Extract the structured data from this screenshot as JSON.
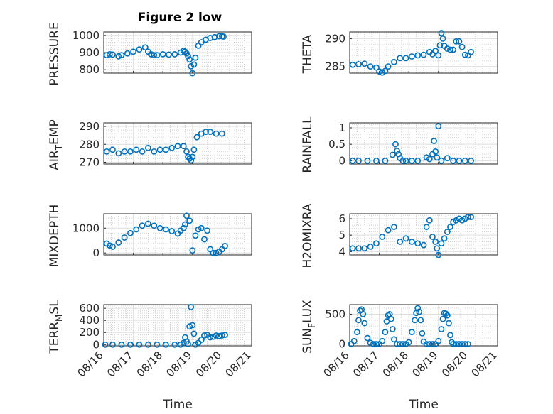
{
  "figure": {
    "title": "Figure 2 low"
  },
  "chart_data": [
    {
      "type": "scatter",
      "ylabel": "PRESSURE",
      "xlabel": "",
      "xlim": [
        "08/16",
        "08/21"
      ],
      "ylim": [
        780,
        1020
      ],
      "yticks": [
        {
          "v": 800,
          "label": "800"
        },
        {
          "v": 900,
          "label": "900"
        },
        {
          "v": 1000,
          "label": "1000"
        }
      ],
      "x": [
        16.1,
        16.2,
        16.3,
        16.5,
        16.6,
        16.8,
        17.0,
        17.2,
        17.4,
        17.5,
        17.6,
        17.7,
        17.8,
        18.0,
        18.2,
        18.4,
        18.6,
        18.7,
        18.75,
        18.8,
        18.85,
        18.9,
        18.95,
        19.0,
        19.05,
        19.1,
        19.2,
        19.3,
        19.45,
        19.6,
        19.75,
        19.9,
        20.0,
        20.05
      ],
      "y": [
        885,
        890,
        888,
        878,
        885,
        895,
        905,
        918,
        930,
        905,
        890,
        885,
        885,
        890,
        888,
        890,
        900,
        910,
        905,
        895,
        880,
        860,
        820,
        780,
        830,
        870,
        940,
        960,
        975,
        985,
        990,
        995,
        995,
        993
      ]
    },
    {
      "type": "scatter",
      "ylabel": "THETA",
      "xlabel": "",
      "xlim": [
        "08/16",
        "08/21"
      ],
      "ylim": [
        283.8,
        291.2
      ],
      "yticks": [
        {
          "v": 285,
          "label": "285"
        },
        {
          "v": 290,
          "label": "290"
        }
      ],
      "x": [
        16.1,
        16.3,
        16.5,
        16.7,
        16.9,
        17.0,
        17.1,
        17.2,
        17.3,
        17.5,
        17.7,
        17.9,
        18.1,
        18.3,
        18.5,
        18.7,
        18.8,
        18.9,
        19.0,
        19.05,
        19.1,
        19.15,
        19.2,
        19.3,
        19.4,
        19.5,
        19.6,
        19.7,
        19.8,
        19.9,
        20.0,
        20.1
      ],
      "y": [
        285.3,
        285.4,
        285.5,
        285.0,
        284.8,
        284.1,
        283.9,
        284.2,
        285.0,
        285.8,
        286.5,
        286.5,
        286.8,
        287.0,
        287.1,
        287.6,
        287.2,
        287.8,
        287.0,
        288.8,
        291.0,
        290.0,
        288.7,
        288.2,
        288.0,
        288.0,
        289.5,
        289.5,
        288.5,
        287.1,
        287.0,
        287.6
      ]
    },
    {
      "type": "scatter",
      "ylabel": "AIR_TEMP",
      "xlabel": "",
      "xlim": [
        "08/16",
        "08/21"
      ],
      "ylim": [
        269,
        292
      ],
      "yticks": [
        {
          "v": 270,
          "label": "270"
        },
        {
          "v": 280,
          "label": "280"
        },
        {
          "v": 290,
          "label": "290"
        }
      ],
      "x": [
        16.1,
        16.3,
        16.5,
        16.7,
        16.9,
        17.1,
        17.3,
        17.5,
        17.7,
        17.9,
        18.1,
        18.3,
        18.5,
        18.7,
        18.8,
        18.85,
        18.9,
        18.95,
        19.0,
        19.05,
        19.15,
        19.3,
        19.45,
        19.6,
        19.8,
        20.0
      ],
      "y": [
        276,
        277,
        275,
        276,
        276,
        277,
        276,
        278,
        276,
        277,
        277,
        278,
        279,
        279,
        276,
        273,
        272,
        271,
        273,
        277,
        284,
        286,
        287,
        287,
        286,
        286
      ]
    },
    {
      "type": "scatter",
      "ylabel": "RAINFALL",
      "xlabel": "",
      "xlim": [
        "08/16",
        "08/21"
      ],
      "ylim": [
        -0.1,
        1.15
      ],
      "yticks": [
        {
          "v": 0,
          "label": "0"
        },
        {
          "v": 0.5,
          "label": "0.5"
        },
        {
          "v": 1,
          "label": "1"
        }
      ],
      "x": [
        16.1,
        16.3,
        16.6,
        16.9,
        17.2,
        17.45,
        17.55,
        17.6,
        17.65,
        17.7,
        17.8,
        17.9,
        18.1,
        18.3,
        18.6,
        18.7,
        18.8,
        18.85,
        18.9,
        18.95,
        19.0,
        19.1,
        19.3,
        19.5,
        19.7,
        19.9,
        20.1
      ],
      "y": [
        0,
        0,
        0,
        0,
        0,
        0.18,
        0.5,
        0.3,
        0.2,
        0.08,
        0,
        0,
        0,
        0,
        0.1,
        0.05,
        0.2,
        0.6,
        0.28,
        0.1,
        1.05,
        0,
        0.08,
        0,
        0,
        0,
        0
      ]
    },
    {
      "type": "scatter",
      "ylabel": "MIXDEPTH",
      "xlabel": "",
      "xlim": [
        "08/16",
        "08/21"
      ],
      "ylim": [
        -80,
        1580
      ],
      "yticks": [
        {
          "v": 0,
          "label": "0"
        },
        {
          "v": 1000,
          "label": "1000"
        }
      ],
      "x": [
        16.1,
        16.2,
        16.3,
        16.5,
        16.7,
        16.9,
        17.1,
        17.3,
        17.5,
        17.7,
        17.9,
        18.1,
        18.3,
        18.5,
        18.6,
        18.7,
        18.75,
        18.8,
        18.9,
        19.0,
        19.1,
        19.2,
        19.3,
        19.4,
        19.5,
        19.6,
        19.7,
        19.8,
        19.9,
        20.0,
        20.1
      ],
      "y": [
        380,
        300,
        250,
        420,
        620,
        800,
        950,
        1100,
        1180,
        1100,
        1000,
        950,
        880,
        780,
        900,
        1000,
        1150,
        1500,
        1300,
        100,
        700,
        950,
        1000,
        550,
        900,
        150,
        0,
        0,
        50,
        150,
        280
      ]
    },
    {
      "type": "scatter",
      "ylabel": "H2OMIXRA",
      "xlabel": "",
      "xlim": [
        "08/16",
        "08/21"
      ],
      "ylim": [
        3.8,
        6.3
      ],
      "yticks": [
        {
          "v": 4,
          "label": "4"
        },
        {
          "v": 5,
          "label": "5"
        },
        {
          "v": 6,
          "label": "6"
        }
      ],
      "x": [
        16.1,
        16.3,
        16.5,
        16.7,
        16.9,
        17.1,
        17.3,
        17.5,
        17.7,
        17.9,
        18.1,
        18.3,
        18.5,
        18.6,
        18.7,
        18.8,
        18.9,
        18.95,
        19.0,
        19.1,
        19.2,
        19.3,
        19.4,
        19.5,
        19.6,
        19.7,
        19.8,
        19.9,
        20.0,
        20.1
      ],
      "y": [
        4.2,
        4.2,
        4.2,
        4.3,
        4.5,
        4.9,
        5.3,
        5.5,
        4.6,
        4.8,
        4.6,
        4.5,
        4.4,
        5.5,
        5.9,
        4.9,
        4.6,
        4.2,
        3.8,
        4.5,
        4.8,
        5.2,
        5.5,
        5.8,
        5.9,
        6.0,
        5.9,
        6.0,
        6.1,
        6.1
      ]
    },
    {
      "type": "scatter",
      "ylabel": "TERR_MSL",
      "xlabel": "Time",
      "xlim": [
        "08/16",
        "08/21"
      ],
      "ylim": [
        -20,
        660
      ],
      "yticks": [
        {
          "v": 0,
          "label": "0"
        },
        {
          "v": 200,
          "label": "200"
        },
        {
          "v": 400,
          "label": "400"
        },
        {
          "v": 600,
          "label": "600"
        }
      ],
      "xticks": [
        "08/16",
        "08/17",
        "08/18",
        "08/19",
        "08/20",
        "08/21"
      ],
      "x": [
        16.05,
        16.3,
        16.6,
        16.9,
        17.2,
        17.5,
        17.8,
        18.1,
        18.4,
        18.6,
        18.7,
        18.75,
        18.8,
        18.85,
        18.9,
        18.95,
        19.0,
        19.05,
        19.1,
        19.2,
        19.3,
        19.4,
        19.5,
        19.6,
        19.7,
        19.8,
        19.9,
        20.0,
        20.1
      ],
      "y": [
        0,
        0,
        0,
        0,
        0,
        0,
        0,
        0,
        0,
        0,
        30,
        120,
        50,
        10,
        300,
        620,
        320,
        180,
        0,
        30,
        80,
        150,
        160,
        120,
        130,
        150,
        140,
        150,
        160
      ]
    },
    {
      "type": "scatter",
      "ylabel": "SUN_FLUX",
      "xlabel": "Time",
      "xlim": [
        "08/16",
        "08/21"
      ],
      "ylim": [
        -30,
        660
      ],
      "yticks": [
        {
          "v": 0,
          "label": "0"
        },
        {
          "v": 500,
          "label": "500"
        }
      ],
      "xticks": [
        "08/16",
        "08/17",
        "08/18",
        "08/19",
        "08/20",
        "08/21"
      ],
      "x": [
        16.05,
        16.15,
        16.25,
        16.3,
        16.35,
        16.4,
        16.45,
        16.5,
        16.6,
        16.7,
        16.8,
        16.9,
        17.0,
        17.1,
        17.2,
        17.25,
        17.3,
        17.35,
        17.4,
        17.45,
        17.5,
        17.6,
        17.7,
        17.8,
        17.9,
        18.0,
        18.1,
        18.2,
        18.25,
        18.3,
        18.35,
        18.4,
        18.45,
        18.5,
        18.6,
        18.7,
        18.8,
        18.9,
        19.0,
        19.1,
        19.15,
        19.2,
        19.25,
        19.3,
        19.35,
        19.4,
        19.45,
        19.5,
        19.6,
        19.7,
        19.8,
        19.9,
        20.0
      ],
      "y": [
        0,
        50,
        200,
        400,
        560,
        580,
        500,
        350,
        100,
        20,
        0,
        0,
        0,
        50,
        200,
        380,
        480,
        500,
        420,
        250,
        80,
        0,
        0,
        0,
        0,
        30,
        200,
        400,
        520,
        600,
        540,
        400,
        180,
        40,
        0,
        0,
        0,
        0,
        50,
        250,
        420,
        520,
        510,
        480,
        350,
        150,
        30,
        0,
        0,
        0,
        0,
        0,
        0
      ]
    }
  ]
}
